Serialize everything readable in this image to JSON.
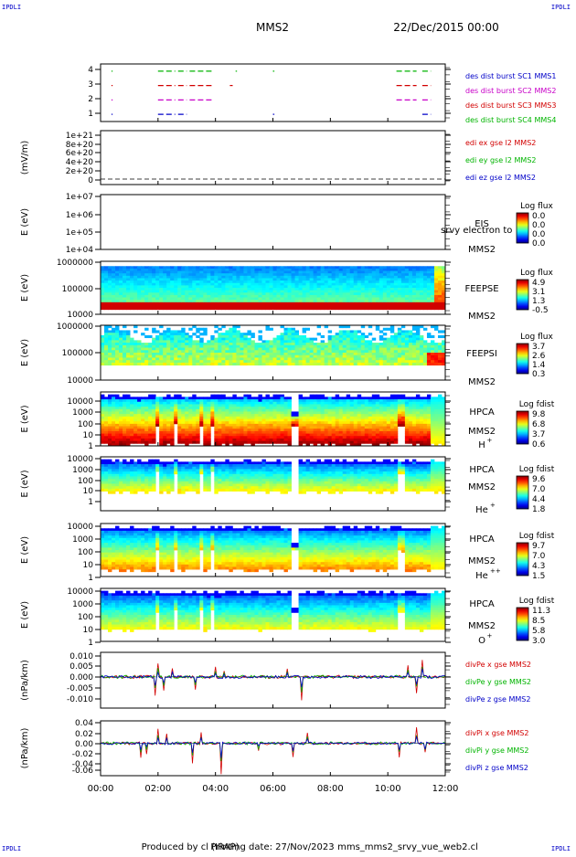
{
  "header": {
    "mission": "MMS2",
    "date": "22/Dec/2015 00:00",
    "corner_label": "IPDLI"
  },
  "footer": {
    "produced_by": "Produced by cl (IRAP)",
    "printing_date": "Printing date: 27/Nov/2023",
    "filename": "mms_mms2_srvy_vue_web2.cl"
  },
  "colors": {
    "red": "#d20000",
    "green": "#00b400",
    "blue": "#0000c8",
    "magenta": "#c800c8"
  },
  "chart_data": {
    "type": "heatmap",
    "x_ticks": [
      "00:00",
      "02:00",
      "04:00",
      "06:00",
      "08:00",
      "10:00",
      "12:00"
    ],
    "xlim_hours": [
      0,
      12
    ],
    "panels": [
      {
        "id": "burst",
        "type": "scatter",
        "ylabel": "",
        "ticks": [
          "4",
          "3",
          "2",
          "1"
        ],
        "ylim": [
          0.5,
          4.5
        ],
        "legend": [
          {
            "text": "des dist burst SC1 MMS1",
            "color": "#0000c8"
          },
          {
            "text": "des dist burst SC2 MMS2",
            "color": "#c800c8"
          },
          {
            "text": "des dist burst SC3 MMS3",
            "color": "#d20000"
          },
          {
            "text": "des dist burst SC4 MMS4",
            "color": "#00b400"
          }
        ],
        "series": [
          {
            "level": 4,
            "color": "#00b400",
            "intervals": [
              [
                0.38,
                0.42
              ],
              [
                2.0,
                2.6
              ],
              [
                2.7,
                3.0
              ],
              [
                3.1,
                3.9
              ],
              [
                4.7,
                4.75
              ],
              [
                6.0,
                6.05
              ],
              [
                10.3,
                11.0
              ],
              [
                11.2,
                11.5
              ]
            ]
          },
          {
            "level": 3,
            "color": "#d20000",
            "intervals": [
              [
                0.38,
                0.42
              ],
              [
                2.0,
                2.6
              ],
              [
                2.7,
                3.0
              ],
              [
                3.1,
                3.9
              ],
              [
                4.5,
                4.6
              ],
              [
                10.3,
                11.0
              ],
              [
                11.2,
                11.5
              ]
            ]
          },
          {
            "level": 2,
            "color": "#c800c8",
            "intervals": [
              [
                0.38,
                0.42
              ],
              [
                2.0,
                2.6
              ],
              [
                2.7,
                3.0
              ],
              [
                3.1,
                3.9
              ],
              [
                10.3,
                11.0
              ],
              [
                11.2,
                11.5
              ]
            ]
          },
          {
            "level": 1,
            "color": "#0000c8",
            "intervals": [
              [
                0.38,
                0.42
              ],
              [
                2.0,
                2.6
              ],
              [
                2.7,
                3.0
              ],
              [
                6.0,
                6.05
              ],
              [
                11.2,
                11.5
              ]
            ]
          }
        ]
      },
      {
        "id": "edi",
        "type": "line",
        "ylabel": "(mV/m)",
        "ticks": [
          "1e+21",
          "8e+20",
          "6e+20",
          "4e+20",
          "2e+20",
          "0"
        ],
        "legend": [
          {
            "text": "edi ex gse l2 MMS2",
            "color": "#d20000"
          },
          {
            "text": "edi ey gse l2 MMS2",
            "color": "#00b400"
          },
          {
            "text": "edi ez gse l2 MMS2",
            "color": "#0000c8"
          }
        ]
      },
      {
        "id": "eis",
        "type": "heatmap",
        "ylabel": "E (eV)",
        "ticks": [
          "1e+07",
          "1e+06",
          "1e+05",
          "1e+04"
        ],
        "instrument": [
          "EIS",
          "MMS2"
        ],
        "overlap_text": "srvy electron to",
        "cbar_title": "Log flux",
        "cbar_ticks": [
          "0.0",
          "0.0",
          "0.0",
          "0.0"
        ]
      },
      {
        "id": "feepse",
        "type": "heatmap",
        "ylabel": "E (eV)",
        "ticks": [
          "1000000",
          "100000",
          "10000"
        ],
        "instrument": [
          "FEEPSE",
          "MMS2"
        ],
        "cbar_title": "Log flux",
        "cbar_ticks": [
          "4.9",
          "3.1",
          "1.3",
          "-0.5"
        ]
      },
      {
        "id": "feepsi",
        "type": "heatmap",
        "ylabel": "E (eV)",
        "ticks": [
          "1000000",
          "100000",
          "10000"
        ],
        "instrument": [
          "FEEPSI",
          "MMS2"
        ],
        "cbar_title": "Log flux",
        "cbar_ticks": [
          "3.7",
          "2.6",
          "1.4",
          "0.3"
        ]
      },
      {
        "id": "hpca_h",
        "type": "heatmap",
        "ylabel": "E (eV)",
        "ticks": [
          "10000",
          "1000",
          "100",
          "10",
          "1"
        ],
        "instrument": [
          "HPCA",
          "MMS2"
        ],
        "species": "H",
        "charge": "+",
        "cbar_title": "Log fdist",
        "cbar_ticks": [
          "9.8",
          "6.8",
          "3.7",
          "0.6"
        ]
      },
      {
        "id": "hpca_he",
        "type": "heatmap",
        "ylabel": "E (eV)",
        "ticks": [
          "10000",
          "1000",
          "100",
          "10",
          "1"
        ],
        "instrument": [
          "HPCA",
          "MMS2"
        ],
        "species": "He",
        "charge": "+",
        "cbar_title": "Log fdist",
        "cbar_ticks": [
          "9.6",
          "7.0",
          "4.4",
          "1.8"
        ]
      },
      {
        "id": "hpca_hepp",
        "type": "heatmap",
        "ylabel": "E (eV)",
        "ticks": [
          "10000",
          "1000",
          "100",
          "10",
          "1"
        ],
        "instrument": [
          "HPCA",
          "MMS2"
        ],
        "species": "He",
        "charge": "++",
        "cbar_title": "Log fdist",
        "cbar_ticks": [
          "9.7",
          "7.0",
          "4.3",
          "1.5"
        ]
      },
      {
        "id": "hpca_o",
        "type": "heatmap",
        "ylabel": "E (eV)",
        "ticks": [
          "10000",
          "1000",
          "100",
          "10",
          "1"
        ],
        "instrument": [
          "HPCA",
          "MMS2"
        ],
        "species": "O",
        "charge": "+",
        "cbar_title": "Log fdist",
        "cbar_ticks": [
          "11.3",
          "8.5",
          "5.8",
          "3.0"
        ]
      },
      {
        "id": "divpe",
        "type": "line",
        "ylabel": "(nPa/km)",
        "ticks": [
          "0.010",
          "0.005",
          "0.000",
          "-0.005",
          "-0.010"
        ],
        "ylim": [
          -0.014,
          0.011
        ],
        "legend": [
          {
            "text": "divPe x gse MMS2",
            "color": "#d20000"
          },
          {
            "text": "divPe y gse MMS2",
            "color": "#00b400"
          },
          {
            "text": "divPe z gse MMS2",
            "color": "#0000c8"
          }
        ]
      },
      {
        "id": "divpi",
        "type": "line",
        "ylabel": "(nPa/km)",
        "ticks": [
          "0.04",
          "0.02",
          "0.00",
          "-0.02",
          "-0.04",
          "-0.06"
        ],
        "ylim": [
          -0.065,
          0.045
        ],
        "legend": [
          {
            "text": "divPi x gse MMS2",
            "color": "#d20000"
          },
          {
            "text": "divPi y gse MMS2",
            "color": "#00b400"
          },
          {
            "text": "divPi z gse MMS2",
            "color": "#0000c8"
          }
        ]
      }
    ]
  }
}
